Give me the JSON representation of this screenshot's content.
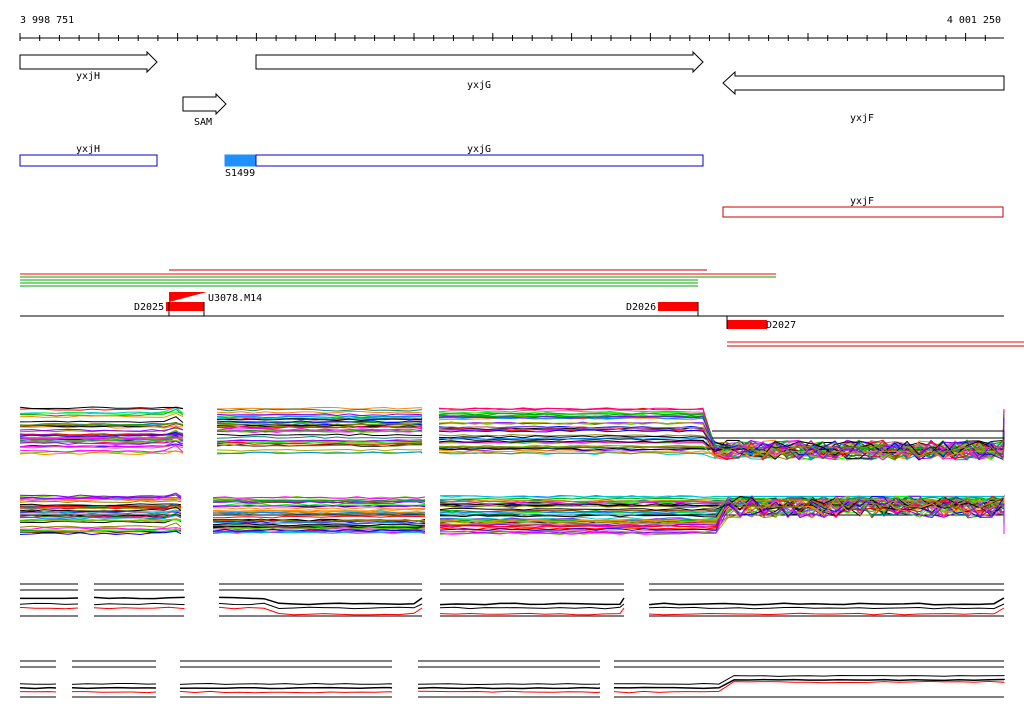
{
  "coordinates": {
    "start": "3 998 751",
    "end": "4 001 250"
  },
  "genes": {
    "yxjH": "yxjH",
    "sam": "SAM",
    "yxjG": "yxjG",
    "yxjF": "yxjF"
  },
  "transcripts": {
    "yxjH": "yxjH",
    "yxjG": "yxjG",
    "yxjF": "yxjF",
    "s1499": "S1499"
  },
  "features": {
    "d2025": "D2025",
    "u3078": "U3078.M14",
    "d2026": "D2026",
    "d2027": "D2027"
  },
  "colors": {
    "transcript_forward": "#0000cc",
    "transcript_reverse": "#cc0000",
    "s1499_fill": "#1e90ff",
    "feature_red": "#ff0000",
    "track_green": "#00aa00",
    "track_black": "#000000",
    "profile_palette": [
      "#ff0000",
      "#00aa00",
      "#0000ff",
      "#ff00ff",
      "#00cccc",
      "#ff8800",
      "#8800ff",
      "#888800",
      "#00ff00",
      "#ff0088",
      "#0088ff",
      "#884400",
      "#aaaa00",
      "#008888",
      "#cc6699",
      "#66cc00"
    ]
  },
  "expression_panels": [
    {
      "segments": [
        "20-183",
        "217-422",
        "439-1004"
      ],
      "drop_to": "down",
      "colored": true
    },
    {
      "segments": [
        "20-181",
        "213-425",
        "440-1004"
      ],
      "drop_to": "up",
      "colored": true
    },
    {
      "segments": [
        "20-78",
        "94-184",
        "219-422",
        "440-624",
        "649-1004"
      ],
      "drop_to": "none",
      "colored": false
    },
    {
      "segments": [
        "20-56",
        "72-156",
        "180-392",
        "418-600",
        "614-1004"
      ],
      "drop_to": "up-small",
      "colored": false
    }
  ]
}
